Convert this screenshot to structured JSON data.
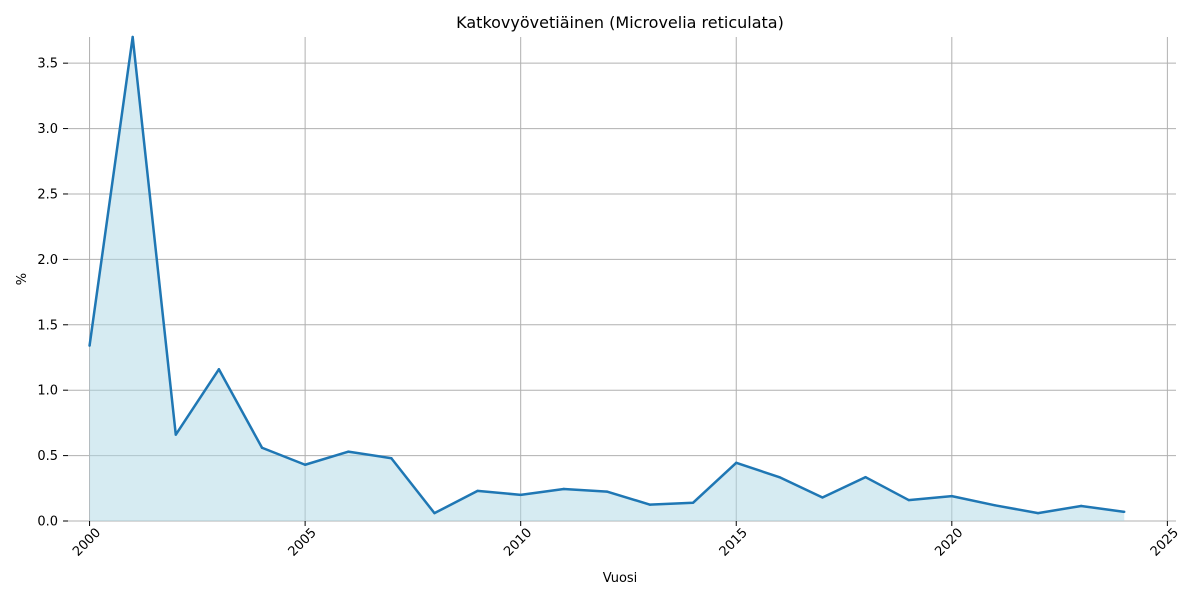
{
  "chart_data": {
    "type": "area",
    "title": "Katkovyövetiäinen (Microvelia reticulata)",
    "xlabel": "Vuosi",
    "ylabel": "%",
    "xlim": [
      1999.5,
      2025.2
    ],
    "ylim": [
      0,
      3.7
    ],
    "xticks": [
      2000,
      2005,
      2010,
      2015,
      2020,
      2025
    ],
    "yticks": [
      0.0,
      0.5,
      1.0,
      1.5,
      2.0,
      2.5,
      3.0,
      3.5
    ],
    "ytick_labels": [
      "0.0",
      "0.5",
      "1.0",
      "1.5",
      "2.0",
      "2.5",
      "3.0",
      "3.5"
    ],
    "grid": true,
    "line_color": "#1f77b4",
    "fill_color": "#add8e6",
    "series": [
      {
        "x": [
          2000,
          2001,
          2002,
          2003,
          2004,
          2005,
          2006,
          2007,
          2008,
          2009,
          2010,
          2011,
          2012,
          2013,
          2014,
          2015,
          2016,
          2017,
          2018,
          2019,
          2020,
          2021,
          2022,
          2023,
          2024
        ],
        "values": [
          1.34,
          3.7,
          0.66,
          1.16,
          0.56,
          0.43,
          0.53,
          0.48,
          0.06,
          0.23,
          0.2,
          0.245,
          0.225,
          0.125,
          0.14,
          0.445,
          0.335,
          0.18,
          0.335,
          0.16,
          0.19,
          0.12,
          0.06,
          0.115,
          0.07
        ]
      }
    ]
  }
}
